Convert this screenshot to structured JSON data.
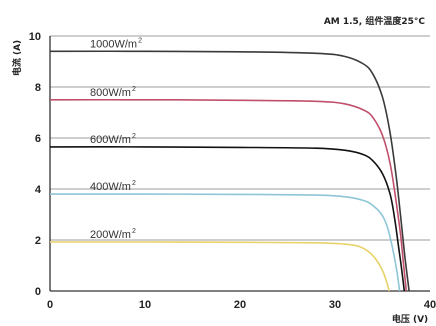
{
  "chart_data": {
    "type": "line",
    "title": "AM 1.5, 组件温度25°C",
    "xlabel": "电压 (V)",
    "ylabel": "电流 (A)",
    "xlim": [
      0,
      40
    ],
    "ylim": [
      0,
      10
    ],
    "x_ticks": [
      "0",
      "10",
      "20",
      "30",
      "40"
    ],
    "y_ticks": [
      "0",
      "2",
      "4",
      "6",
      "8",
      "10"
    ],
    "grid": "horizontal",
    "series": [
      {
        "name": "1000W/m²",
        "label_text": "1000W/m",
        "label_sup": "2",
        "color": "#3a3a3a",
        "x": [
          0,
          10,
          20,
          28,
          31,
          33,
          34,
          35,
          35.8,
          36.5,
          37,
          37.4,
          37.8
        ],
        "y": [
          9.4,
          9.4,
          9.38,
          9.32,
          9.2,
          8.9,
          8.5,
          7.6,
          6.2,
          4.3,
          2.6,
          1.2,
          0
        ]
      },
      {
        "name": "800W/m²",
        "label_text": "800W/m",
        "label_sup": "2",
        "color": "#c0506a",
        "x": [
          0,
          10,
          20,
          28,
          31,
          33,
          34,
          35,
          35.8,
          36.4,
          36.9,
          37.2,
          37.5
        ],
        "y": [
          7.5,
          7.5,
          7.48,
          7.44,
          7.34,
          7.1,
          6.8,
          6.1,
          5.0,
          3.6,
          2.2,
          1.1,
          0
        ]
      },
      {
        "name": "600W/m²",
        "label_text": "600W/m",
        "label_sup": "2",
        "color": "#111111",
        "x": [
          0,
          10,
          20,
          28,
          31,
          33,
          34,
          35,
          35.8,
          36.3,
          36.7,
          37.0,
          37.3
        ],
        "y": [
          5.65,
          5.65,
          5.63,
          5.6,
          5.52,
          5.35,
          5.1,
          4.6,
          3.8,
          2.8,
          1.7,
          0.9,
          0
        ]
      },
      {
        "name": "400W/m²",
        "label_text": "400W/m",
        "label_sup": "2",
        "color": "#8ec6d8",
        "x": [
          0,
          10,
          20,
          28,
          31,
          33,
          34,
          35,
          35.6,
          36.1,
          36.5,
          36.8
        ],
        "y": [
          3.8,
          3.8,
          3.79,
          3.76,
          3.7,
          3.55,
          3.35,
          2.95,
          2.4,
          1.6,
          0.8,
          0
        ]
      },
      {
        "name": "200W/m²",
        "label_text": "200W/m",
        "label_sup": "2",
        "color": "#e8d26a",
        "x": [
          0,
          10,
          20,
          28,
          31,
          32.5,
          33.5,
          34.3,
          35,
          35.4,
          35.7
        ],
        "y": [
          1.92,
          1.92,
          1.91,
          1.89,
          1.84,
          1.75,
          1.55,
          1.25,
          0.8,
          0.4,
          0
        ]
      }
    ]
  }
}
